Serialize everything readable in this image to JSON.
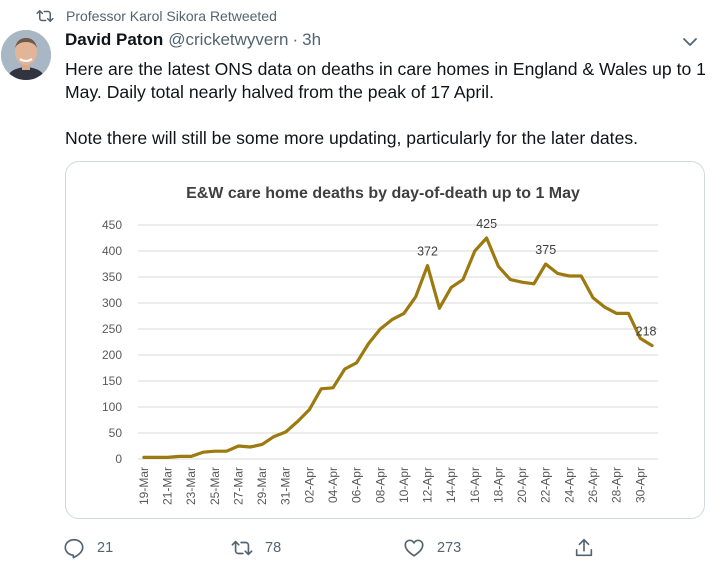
{
  "retweet_context": {
    "text": "Professor Karol Sikora Retweeted",
    "icon": "retweet-icon"
  },
  "author": {
    "display_name": "David Paton",
    "handle": "@cricketwyvern",
    "separator": "·",
    "time": "3h"
  },
  "tweet": {
    "paragraph1": "Here are the latest ONS data on deaths in care homes in England & Wales up to 1 May. Daily total nearly halved from the peak of 17 April.",
    "paragraph2": "Note there will still be some more updating, particularly for the later dates."
  },
  "actions": {
    "reply": {
      "icon": "reply-icon",
      "count": "21"
    },
    "retweet": {
      "icon": "retweet-icon",
      "count": "78"
    },
    "like": {
      "icon": "like-icon",
      "count": "273"
    },
    "share": {
      "icon": "share-icon"
    }
  },
  "colors": {
    "line": "#9c7a10",
    "grid": "#d9d9d9",
    "text_secondary": "#536471",
    "border": "#cfd9de"
  },
  "chart_data": {
    "type": "line",
    "title": "E&W care home deaths by day-of-death up to 1 May",
    "xlabel": "",
    "ylabel": "",
    "ylim": [
      0,
      450
    ],
    "yticks": [
      0,
      50,
      100,
      150,
      200,
      250,
      300,
      350,
      400,
      450
    ],
    "grid": true,
    "x": [
      "19-Mar",
      "20-Mar",
      "21-Mar",
      "22-Mar",
      "23-Mar",
      "24-Mar",
      "25-Mar",
      "26-Mar",
      "27-Mar",
      "28-Mar",
      "29-Mar",
      "30-Mar",
      "31-Mar",
      "01-Apr",
      "02-Apr",
      "03-Apr",
      "04-Apr",
      "05-Apr",
      "06-Apr",
      "07-Apr",
      "08-Apr",
      "09-Apr",
      "10-Apr",
      "11-Apr",
      "12-Apr",
      "13-Apr",
      "14-Apr",
      "15-Apr",
      "16-Apr",
      "17-Apr",
      "18-Apr",
      "19-Apr",
      "20-Apr",
      "21-Apr",
      "22-Apr",
      "23-Apr",
      "24-Apr",
      "25-Apr",
      "26-Apr",
      "27-Apr",
      "28-Apr",
      "29-Apr",
      "30-Apr",
      "01-May"
    ],
    "xtick_labels": [
      "19-Mar",
      "21-Mar",
      "23-Mar",
      "25-Mar",
      "27-Mar",
      "29-Mar",
      "31-Mar",
      "02-Apr",
      "04-Apr",
      "06-Apr",
      "08-Apr",
      "10-Apr",
      "12-Apr",
      "14-Apr",
      "16-Apr",
      "18-Apr",
      "20-Apr",
      "22-Apr",
      "24-Apr",
      "26-Apr",
      "28-Apr",
      "30-Apr"
    ],
    "series": [
      {
        "values": [
          3,
          3,
          3,
          5,
          5,
          13,
          15,
          15,
          25,
          23,
          28,
          43,
          52,
          72,
          95,
          135,
          137,
          173,
          185,
          222,
          250,
          268,
          280,
          312,
          372,
          290,
          330,
          345,
          400,
          425,
          370,
          345,
          340,
          337,
          375,
          357,
          352,
          352,
          310,
          292,
          280,
          280,
          232,
          218
        ]
      }
    ],
    "annotations": [
      {
        "x": "12-Apr",
        "label": "372"
      },
      {
        "x": "17-Apr",
        "label": "425"
      },
      {
        "x": "22-Apr",
        "label": "375"
      },
      {
        "x": "01-May",
        "label": "218"
      }
    ]
  }
}
